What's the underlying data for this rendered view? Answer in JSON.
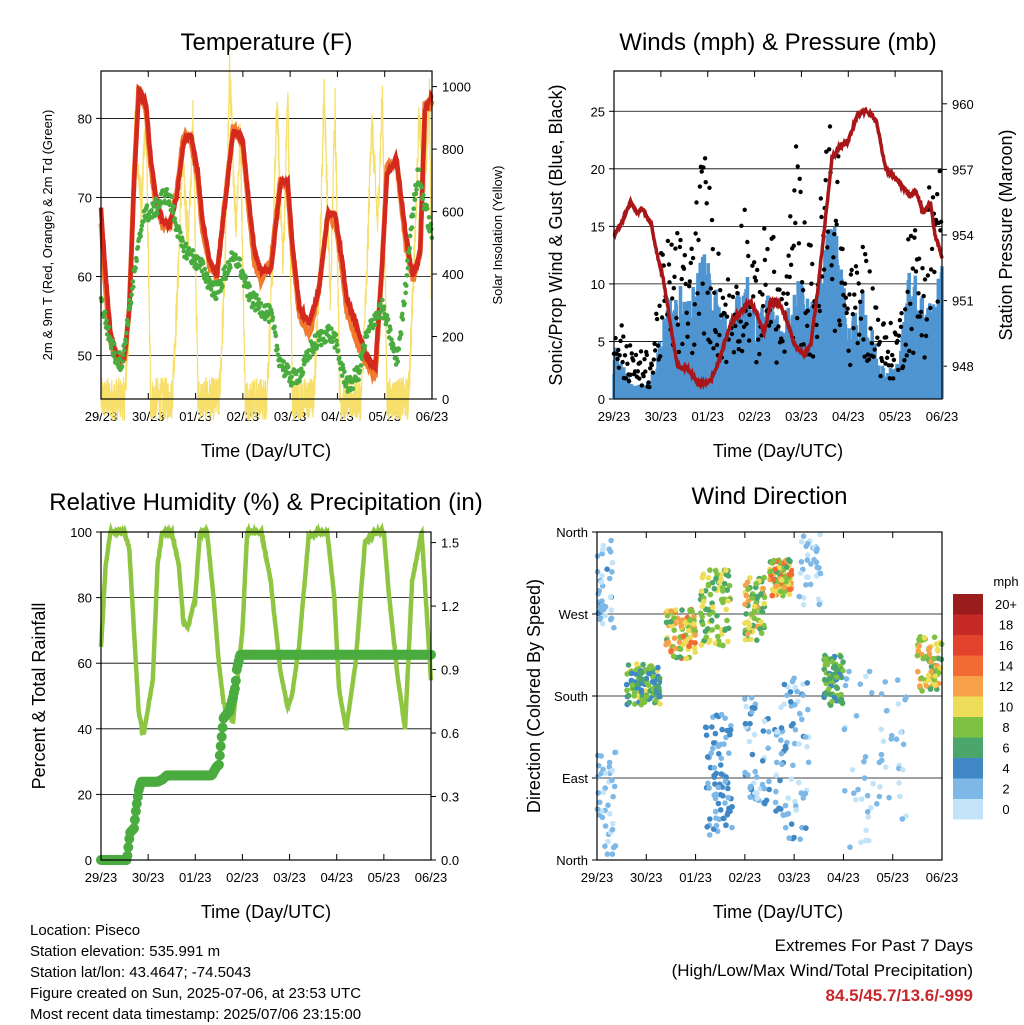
{
  "x_ticks": [
    "29/23",
    "30/23",
    "01/23",
    "02/23",
    "03/23",
    "04/23",
    "05/23",
    "06/23"
  ],
  "colors": {
    "temp2m": "#f07b2e",
    "temp9m": "#d42a1e",
    "dewpoint": "#4aab3f",
    "solar": "#f6df6a",
    "wind": "#4f95d1",
    "gust": "#000000",
    "pressure": "#a8161a",
    "rh": "#8ec642",
    "precip": "#4aab3f"
  },
  "chart_data": [
    {
      "id": "temperature",
      "type": "line",
      "title": "Temperature (F)",
      "xlabel": "Time (Day/UTC)",
      "ylabel": "2m & 9m T (Red, Orange) & 2m Td (Green)",
      "y2label": "Solar Insolation (Yellow)",
      "xlim": [
        0,
        7
      ],
      "ylim": [
        44.5,
        86
      ],
      "y2lim": [
        0,
        1050
      ],
      "yticks": [
        50,
        60,
        70,
        80
      ],
      "y2ticks": [
        0,
        200,
        400,
        600,
        800,
        1000
      ],
      "grid": true,
      "series": [
        {
          "key": "temp9m",
          "x": [
            0,
            0.1,
            0.2,
            0.35,
            0.5,
            0.6,
            0.7,
            0.8,
            0.95,
            1.05,
            1.15,
            1.3,
            1.45,
            1.6,
            1.75,
            1.9,
            2.05,
            2.15,
            2.3,
            2.45,
            2.6,
            2.8,
            3.0,
            3.1,
            3.25,
            3.4,
            3.6,
            3.8,
            3.95,
            4.05,
            4.2,
            4.4,
            4.6,
            4.8,
            4.95,
            5.1,
            5.2,
            5.4,
            5.6,
            5.8,
            5.95,
            6.05,
            6.25,
            6.45,
            6.6,
            6.75,
            6.85,
            7.0
          ],
          "y": [
            68.5,
            60,
            53,
            49.5,
            50,
            56,
            72,
            83.5,
            82,
            75,
            70.5,
            67,
            66.5,
            70,
            77,
            78,
            73,
            67,
            62,
            60,
            68,
            78.5,
            77,
            71,
            63,
            60.5,
            61,
            72,
            72,
            64,
            56,
            54,
            58,
            68,
            68,
            62,
            57,
            54,
            50,
            48.5,
            62,
            73,
            75,
            65,
            60,
            63,
            81,
            83
          ]
        },
        {
          "key": "temp2m",
          "x": [
            0,
            0.1,
            0.2,
            0.35,
            0.5,
            0.6,
            0.7,
            0.8,
            0.95,
            1.05,
            1.15,
            1.3,
            1.45,
            1.6,
            1.75,
            1.9,
            2.05,
            2.15,
            2.3,
            2.45,
            2.6,
            2.8,
            3.0,
            3.1,
            3.25,
            3.4,
            3.6,
            3.8,
            3.95,
            4.05,
            4.2,
            4.4,
            4.6,
            4.8,
            4.95,
            5.1,
            5.2,
            5.4,
            5.6,
            5.8,
            5.95,
            6.05,
            6.25,
            6.45,
            6.6,
            6.75,
            6.85,
            7.0
          ],
          "y": [
            67,
            58,
            52,
            49,
            49.5,
            56,
            72.5,
            84,
            81,
            74,
            69.5,
            66.5,
            66.5,
            70.5,
            78,
            77.5,
            72,
            65.5,
            61.5,
            60,
            68.5,
            79,
            76.5,
            70,
            61.5,
            59.5,
            62,
            72.5,
            71,
            63,
            55,
            52.5,
            58,
            68,
            67,
            61,
            55.5,
            52,
            49,
            47.5,
            62,
            74,
            74.5,
            64,
            59.5,
            63,
            81.5,
            82
          ]
        },
        {
          "key": "dewpoint",
          "x": [
            0,
            0.15,
            0.3,
            0.45,
            0.6,
            0.75,
            0.9,
            1.05,
            1.2,
            1.35,
            1.5,
            1.7,
            1.85,
            2.0,
            2.15,
            2.3,
            2.45,
            2.6,
            2.75,
            2.9,
            3.05,
            3.2,
            3.4,
            3.6,
            3.75,
            3.9,
            4.05,
            4.25,
            4.45,
            4.6,
            4.8,
            4.95,
            5.1,
            5.25,
            5.45,
            5.6,
            5.8,
            5.95,
            6.1,
            6.25,
            6.4,
            6.55,
            6.7,
            6.85,
            7.0
          ],
          "y": [
            57,
            53,
            50,
            49,
            56,
            62,
            68,
            68,
            69,
            70.5,
            69,
            64,
            63,
            62,
            61,
            59,
            58,
            60,
            62,
            62,
            59,
            57,
            56,
            55,
            50,
            48,
            47,
            48,
            51,
            52,
            53,
            52,
            48,
            46,
            48,
            52,
            55,
            56,
            53,
            49,
            56,
            66,
            73,
            69,
            65
          ]
        },
        {
          "key": "solar",
          "x": [
            0,
            0.5,
            0.62,
            0.72,
            0.85,
            0.95,
            1.05,
            1.5,
            1.62,
            1.72,
            1.85,
            1.95,
            2.05,
            2.5,
            2.62,
            2.72,
            2.85,
            2.95,
            3.05,
            3.5,
            3.62,
            3.72,
            3.85,
            3.95,
            4.05,
            4.5,
            4.62,
            4.72,
            4.85,
            4.95,
            5.05,
            5.5,
            5.62,
            5.72,
            5.85,
            5.95,
            6.05,
            6.5,
            6.62,
            6.72,
            6.85,
            6.95,
            7.0
          ],
          "y": [
            0,
            0,
            300,
            880,
            600,
            900,
            0,
            0,
            350,
            760,
            500,
            920,
            0,
            0,
            400,
            1050,
            560,
            850,
            0,
            0,
            380,
            950,
            420,
            980,
            0,
            0,
            410,
            1000,
            300,
            970,
            0,
            0,
            380,
            900,
            560,
            980,
            0,
            0,
            430,
            880,
            700,
            980,
            100
          ]
        }
      ]
    },
    {
      "id": "winds",
      "type": "scatter",
      "title": "Winds (mph) & Pressure (mb)",
      "xlabel": "Time (Day/UTC)",
      "ylabel": "Sonic/Prop Wind & Gust (Blue, Black)",
      "y2label": "Station Pressure (Maroon)",
      "xlim": [
        0,
        7
      ],
      "ylim": [
        0,
        28.5
      ],
      "y2lim": [
        946.5,
        961.5
      ],
      "yticks": [
        0,
        5,
        10,
        15,
        20,
        25
      ],
      "y2ticks": [
        948,
        951,
        954,
        957,
        960
      ],
      "grid": true,
      "wind_envelope": {
        "x": [
          0,
          0.4,
          0.8,
          1.0,
          1.3,
          1.6,
          1.9,
          2.2,
          2.5,
          2.8,
          3.0,
          3.3,
          3.6,
          3.9,
          4.1,
          4.3,
          4.6,
          4.8,
          5.0,
          5.3,
          5.6,
          5.8,
          6.1,
          6.3,
          6.6,
          6.8,
          7.0
        ],
        "y": [
          4,
          1,
          1.5,
          5,
          9,
          7,
          11,
          8,
          6,
          10,
          6,
          8,
          5,
          9,
          8,
          7,
          14,
          12,
          5,
          8,
          4,
          2,
          3,
          10,
          8,
          7,
          10
        ]
      },
      "gust_peaks": {
        "x": [
          0,
          0.4,
          0.8,
          1.0,
          1.3,
          1.6,
          1.9,
          2.2,
          2.5,
          2.8,
          3.0,
          3.3,
          3.6,
          3.9,
          4.1,
          4.3,
          4.6,
          4.8,
          5.0,
          5.3,
          5.6,
          5.8,
          6.1,
          6.3,
          6.6,
          6.8,
          7.0
        ],
        "y": [
          8,
          4,
          4,
          12,
          15,
          12,
          22,
          13,
          10,
          18,
          11,
          16,
          9,
          22,
          14,
          12,
          26,
          20,
          10,
          14,
          9,
          6,
          7,
          16,
          13,
          22,
          20
        ]
      },
      "pressure": {
        "x": [
          0,
          0.15,
          0.35,
          0.5,
          0.6,
          0.8,
          0.9,
          1.05,
          1.2,
          1.35,
          1.6,
          1.8,
          2.05,
          2.2,
          2.35,
          2.5,
          2.7,
          2.9,
          3.05,
          3.2,
          3.35,
          3.55,
          3.7,
          3.85,
          4.05,
          4.2,
          4.35,
          4.5,
          4.65,
          4.8,
          5.0,
          5.2,
          5.4,
          5.6,
          5.8,
          6.05,
          6.3,
          6.45,
          6.6,
          6.75,
          6.85,
          7.0
        ],
        "y": [
          954,
          954.5,
          955.5,
          955,
          955.2,
          954.5,
          953.3,
          952,
          950,
          948,
          947.8,
          947.2,
          947.3,
          948,
          949,
          950,
          950.5,
          951,
          950.4,
          949.5,
          951,
          950.8,
          950,
          949,
          948.5,
          949,
          951.5,
          954.5,
          957.5,
          958,
          958.3,
          959.5,
          959.7,
          959.2,
          957,
          956.5,
          955.8,
          956,
          955,
          955.5,
          954,
          953
        ]
      }
    },
    {
      "id": "humidity",
      "type": "line",
      "title": "Relative Humidity (%) & Precipitation (in)",
      "xlabel": "Time (Day/UTC)",
      "ylabel": "Percent & Total Rainfall",
      "xlim": [
        0,
        7
      ],
      "ylim": [
        0,
        100
      ],
      "y2lim": [
        0,
        1.55
      ],
      "yticks": [
        0,
        20,
        40,
        60,
        80,
        100
      ],
      "y2ticks": [
        "0.0",
        "0.3",
        "0.6",
        "0.9",
        "1.2",
        "1.5"
      ],
      "grid": true,
      "series": [
        {
          "key": "rh",
          "x": [
            0,
            0.1,
            0.2,
            0.5,
            0.6,
            0.7,
            0.8,
            0.9,
            1.1,
            1.2,
            1.3,
            1.5,
            1.65,
            1.75,
            1.85,
            2.0,
            2.1,
            2.25,
            2.4,
            2.5,
            2.6,
            2.8,
            3.0,
            3.1,
            3.2,
            3.4,
            3.6,
            3.8,
            3.95,
            4.05,
            4.2,
            4.4,
            4.6,
            4.8,
            4.95,
            5.05,
            5.2,
            5.4,
            5.6,
            5.8,
            6.0,
            6.1,
            6.3,
            6.45,
            6.6,
            6.8,
            7.0
          ],
          "y": [
            65,
            90,
            100,
            100,
            95,
            70,
            45,
            38,
            55,
            90,
            100,
            100,
            90,
            72,
            71,
            80,
            100,
            100,
            78,
            60,
            48,
            42,
            70,
            100,
            100,
            100,
            85,
            58,
            47,
            50,
            65,
            98,
            100,
            100,
            80,
            52,
            40,
            60,
            97,
            100,
            100,
            82,
            55,
            40,
            85,
            100,
            55
          ]
        },
        {
          "key": "precip",
          "x": [
            0,
            0.45,
            0.55,
            0.6,
            0.62,
            0.7,
            0.75,
            0.8,
            0.85,
            1.2,
            1.3,
            1.4,
            1.7,
            1.9,
            2.1,
            2.3,
            2.35,
            2.45,
            2.5,
            2.6,
            2.7,
            2.72,
            2.8,
            2.85,
            2.88,
            2.95,
            7.0
          ],
          "y": [
            0,
            0,
            0,
            0.1,
            0.13,
            0.15,
            0.25,
            0.33,
            0.37,
            0.37,
            0.38,
            0.4,
            0.4,
            0.4,
            0.4,
            0.4,
            0.4,
            0.44,
            0.45,
            0.67,
            0.7,
            0.7,
            0.77,
            0.82,
            0.9,
            0.97,
            0.97
          ]
        }
      ]
    },
    {
      "id": "direction",
      "type": "scatter",
      "title": "Wind Direction",
      "xlabel": "Time (Day/UTC)",
      "ylabel": "Direction (Colored By Speed)",
      "xlim": [
        0,
        7
      ],
      "ylim": [
        0,
        360
      ],
      "yticks": [
        "North",
        "East",
        "South",
        "West",
        "North"
      ],
      "ytick_values": [
        0,
        90,
        180,
        270,
        360
      ],
      "grid": true,
      "colorbar": {
        "title": "mph",
        "labels": [
          "20+",
          "18",
          "16",
          "14",
          "12",
          "10",
          "8",
          "6",
          "4",
          "2",
          "0"
        ],
        "colors": [
          "#9b1c1c",
          "#c62a26",
          "#e3432c",
          "#f26b32",
          "#f7a14a",
          "#eedd58",
          "#7fc242",
          "#4aa66a",
          "#3f88c5",
          "#7db8e6",
          "#c3e4f8"
        ]
      },
      "clusters": [
        {
          "x": [
            0.0,
            0.35
          ],
          "dir": [
            250,
            355
          ],
          "speed": [
            0,
            4
          ],
          "n": 40
        },
        {
          "x": [
            0.0,
            0.4
          ],
          "dir": [
            0,
            120
          ],
          "speed": [
            0,
            3
          ],
          "n": 40
        },
        {
          "x": [
            0.6,
            1.3
          ],
          "dir": [
            170,
            215
          ],
          "speed": [
            3,
            10
          ],
          "n": 120
        },
        {
          "x": [
            1.4,
            2.0
          ],
          "dir": [
            220,
            275
          ],
          "speed": [
            6,
            14
          ],
          "n": 90
        },
        {
          "x": [
            2.1,
            2.7
          ],
          "dir": [
            235,
            320
          ],
          "speed": [
            5,
            11
          ],
          "n": 90
        },
        {
          "x": [
            2.2,
            2.75
          ],
          "dir": [
            20,
            160
          ],
          "speed": [
            1,
            5
          ],
          "n": 80
        },
        {
          "x": [
            3.0,
            3.4
          ],
          "dir": [
            240,
            310
          ],
          "speed": [
            5,
            12
          ],
          "n": 70
        },
        {
          "x": [
            3.0,
            3.5
          ],
          "dir": [
            60,
            180
          ],
          "speed": [
            0,
            5
          ],
          "n": 50
        },
        {
          "x": [
            3.5,
            3.95
          ],
          "dir": [
            290,
            330
          ],
          "speed": [
            6,
            15
          ],
          "n": 90
        },
        {
          "x": [
            3.6,
            4.3
          ],
          "dir": [
            20,
            200
          ],
          "speed": [
            0,
            4
          ],
          "n": 80
        },
        {
          "x": [
            4.1,
            4.6
          ],
          "dir": [
            280,
            360
          ],
          "speed": [
            0,
            3
          ],
          "n": 35
        },
        {
          "x": [
            4.6,
            5.0
          ],
          "dir": [
            170,
            225
          ],
          "speed": [
            4,
            9
          ],
          "n": 80
        },
        {
          "x": [
            5.0,
            6.3
          ],
          "dir": [
            10,
            210
          ],
          "speed": [
            0,
            3
          ],
          "n": 60
        },
        {
          "x": [
            6.5,
            7.0
          ],
          "dir": [
            185,
            245
          ],
          "speed": [
            6,
            13
          ],
          "n": 70
        }
      ]
    }
  ],
  "info": {
    "location": "Location: Piseco",
    "elevation": "Station elevation: 535.991 m",
    "latlon": "Station lat/lon: 43.4647; -74.5043",
    "created": "Figure created on Sun, 2025-07-06, at 23:53 UTC",
    "recent": "Most recent data timestamp: 2025/07/06 23:15:00"
  },
  "extremes": {
    "line1": "Extremes For Past 7 Days",
    "line2": "(High/Low/Max Wind/Total Precipitation)",
    "values": "84.5/45.7/13.6/-999"
  }
}
